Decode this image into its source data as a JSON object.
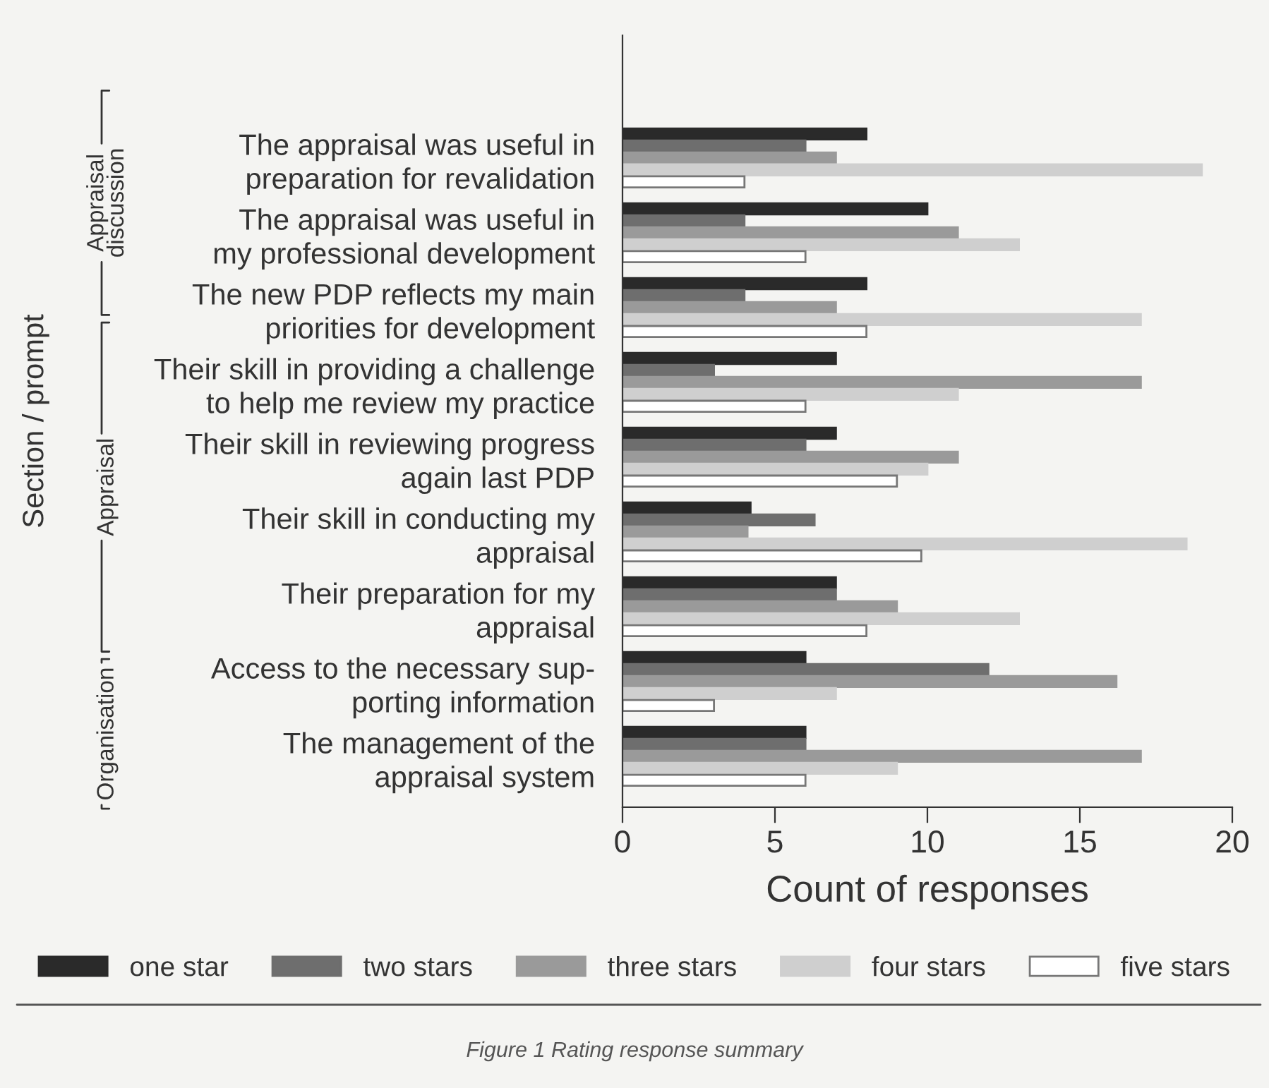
{
  "chart_data": {
    "type": "bar",
    "orientation": "horizontal",
    "categories": [
      "The appraisal was useful in\npreparation for revalidation",
      "The appraisal was useful in\nmy professional development",
      "The new PDP reflects my main\npriorities for development",
      "Their skill in providing a challenge\nto help me review my practice",
      "Their skill in reviewing progress\nagain last PDP",
      "Their skill in conducting my\nappraisal",
      "Their preparation for my\nappraisal",
      "Access to the necessary sup-\nporting information",
      "The management of the\nappraisal system"
    ],
    "series": [
      {
        "name": "one star",
        "color": "#2a2a2a",
        "values": [
          8,
          10,
          8,
          7,
          7,
          4.2,
          7,
          6,
          6
        ]
      },
      {
        "name": "two stars",
        "color": "#6e6e6e",
        "values": [
          6,
          4,
          4,
          3,
          6,
          6.3,
          7,
          12,
          6
        ]
      },
      {
        "name": "three stars",
        "color": "#9a9a9a",
        "values": [
          7,
          11,
          7,
          17,
          11,
          4.1,
          9,
          16.2,
          17
        ]
      },
      {
        "name": "four stars",
        "color": "#cfcfcf",
        "values": [
          19,
          13,
          17,
          11,
          10,
          18.5,
          13,
          7,
          9
        ]
      },
      {
        "name": "five stars",
        "color": "#ffffff",
        "values": [
          4,
          6,
          8,
          6,
          9,
          9.8,
          8,
          3,
          6
        ]
      }
    ],
    "xlabel": "Count of responses",
    "ylabel": "Section / prompt",
    "xlim": [
      0,
      20
    ],
    "xticks": [
      0,
      5,
      10,
      15,
      20
    ],
    "annotations": [
      "Appraisal\ndiscussion",
      "Appraisal",
      "Organisation",
      "Figure 1 Rating response summary"
    ],
    "legend": "bottom",
    "grid": false
  }
}
